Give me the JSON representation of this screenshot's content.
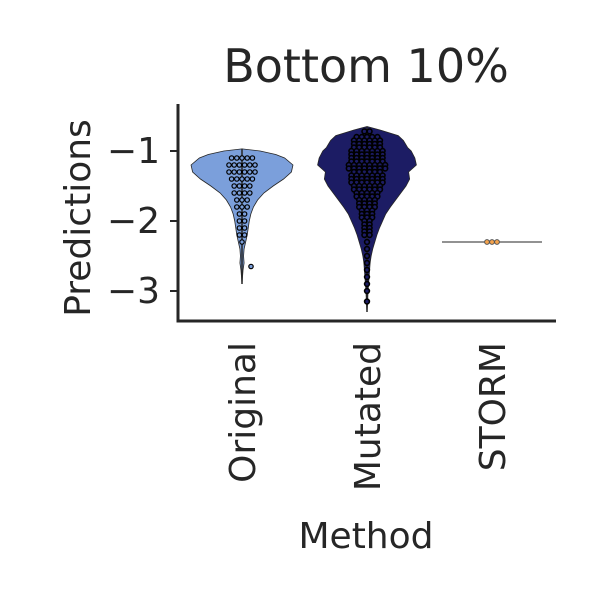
{
  "chart_data": {
    "type": "violin",
    "title": "Bottom 10%",
    "xlabel": "Method",
    "ylabel": "Predictions",
    "categories": [
      "Original",
      "Mutated",
      "STORM"
    ],
    "ylim": [
      -3.4,
      -0.6
    ],
    "yticks": [
      -1,
      -2,
      -3
    ],
    "ytick_labels": [
      "−1",
      "−2",
      "−3"
    ],
    "grid": false,
    "series": [
      {
        "category": "Original",
        "color": "#7b9fdb",
        "min": -2.9,
        "max": -0.97,
        "median": -1.4,
        "points": [
          -1.1,
          -1.1,
          -1.1,
          -1.2,
          -1.2,
          -1.2,
          -1.3,
          -1.3,
          -1.3,
          -1.3,
          -1.4,
          -1.4,
          -1.4,
          -1.5,
          -1.5,
          -1.5,
          -1.6,
          -1.6,
          -1.7,
          -1.7,
          -1.8,
          -1.8,
          -1.9,
          -2.0,
          -2.1,
          -2.2,
          -2.3,
          -2.65
        ]
      },
      {
        "category": "Mutated",
        "color": "#1c1c64",
        "min": -3.3,
        "max": -0.65,
        "median": -1.5,
        "points": [
          -0.72,
          -0.8,
          -0.85,
          -0.9,
          -0.95,
          -1.0,
          -1.05,
          -1.1,
          -1.15,
          -1.2,
          -1.25,
          -1.3,
          -1.35,
          -1.4,
          -1.45,
          -1.5,
          -1.55,
          -1.6,
          -1.65,
          -1.7,
          -1.75,
          -1.8,
          -1.85,
          -1.9,
          -1.95,
          -2.0,
          -2.05,
          -2.1,
          -2.15,
          -2.2,
          -2.3,
          -2.4,
          -2.5,
          -2.6,
          -2.7,
          -2.8,
          -2.9,
          -3.0,
          -3.15
        ]
      },
      {
        "category": "STORM",
        "color": "#f5a34c",
        "min": -2.3,
        "max": -2.3,
        "median": -2.3,
        "points": [
          -2.3,
          -2.3,
          -2.3
        ]
      }
    ]
  }
}
